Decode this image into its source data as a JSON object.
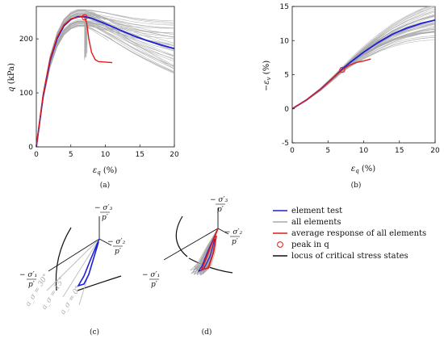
{
  "colors": {
    "element_test": "#1f1fd6",
    "all_elements": "#a8a8a8",
    "average": "#e01b1b",
    "critical": "#111111",
    "peak_marker": "#e01b1b"
  },
  "legend": [
    {
      "label": "element test",
      "color": "#1f1fd6",
      "kind": "line"
    },
    {
      "label": "all elements",
      "color": "#a8a8a8",
      "kind": "line"
    },
    {
      "label": "average response of all elements",
      "color": "#e01b1b",
      "kind": "line"
    },
    {
      "label": "peak in q",
      "color": "#e01b1b",
      "kind": "circle"
    },
    {
      "label": "locus of critical stress states",
      "color": "#111111",
      "kind": "line"
    }
  ],
  "captions": {
    "a": "(a)",
    "b": "(b)",
    "c": "(c)",
    "d": "(d)"
  },
  "pi_labels": {
    "s3_num": "σ′₃",
    "s3_den": "p′",
    "s2_num": "σ′₂",
    "s2_den": "p′",
    "s1_num": "σ′₁",
    "s1_den": "p′",
    "neg": "−"
  },
  "lode_labels": [
    "a_σ = 30°",
    "a_σ = 15°",
    "a_σ = 0°"
  ],
  "chart_data": [
    {
      "id": "a",
      "type": "line",
      "xlabel": "ε_q (%)",
      "ylabel": "q (kPa)",
      "xlim": [
        0,
        20
      ],
      "ylim": [
        0,
        260
      ],
      "xticks": [
        0,
        5,
        10,
        15,
        20
      ],
      "yticks": [
        0,
        100,
        200
      ],
      "series": [
        {
          "name": "element test",
          "x": [
            0,
            1,
            2,
            3,
            4,
            5,
            6,
            7,
            8,
            10,
            12,
            14,
            16,
            18,
            20
          ],
          "y": [
            0,
            95,
            160,
            200,
            224,
            236,
            241,
            241,
            238,
            228,
            217,
            206,
            197,
            189,
            182
          ]
        },
        {
          "name": "average response of all elements",
          "x": [
            0,
            1,
            2,
            3,
            4,
            5,
            6,
            6.5,
            7,
            7.3,
            7.6,
            8,
            8.5,
            9,
            10,
            11
          ],
          "y": [
            0,
            97,
            163,
            203,
            226,
            237,
            240,
            241,
            240,
            230,
            200,
            175,
            162,
            158,
            157,
            156
          ]
        }
      ],
      "peak": {
        "x": 7,
        "y": 240
      },
      "grid": false
    },
    {
      "id": "b",
      "type": "line",
      "xlabel": "ε_q (%)",
      "ylabel": "−ε_v (%)",
      "xlim": [
        0,
        20
      ],
      "ylim": [
        -5,
        15
      ],
      "xticks": [
        0,
        5,
        10,
        15,
        20
      ],
      "yticks": [
        -5,
        0,
        5,
        10,
        15
      ],
      "series": [
        {
          "name": "element test",
          "x": [
            0,
            2,
            4,
            6,
            7,
            8,
            10,
            12,
            14,
            16,
            18,
            20
          ],
          "y": [
            0,
            1.3,
            2.9,
            4.8,
            5.8,
            6.7,
            8.3,
            9.7,
            10.9,
            11.8,
            12.5,
            13.0
          ]
        },
        {
          "name": "average response of all elements",
          "x": [
            0,
            2,
            4,
            6,
            7,
            8,
            9,
            10,
            11
          ],
          "y": [
            0,
            1.3,
            2.9,
            4.8,
            5.7,
            6.4,
            6.8,
            7.0,
            7.3
          ]
        }
      ],
      "peak": {
        "x": 7,
        "y": 5.7
      },
      "grid": false
    }
  ]
}
